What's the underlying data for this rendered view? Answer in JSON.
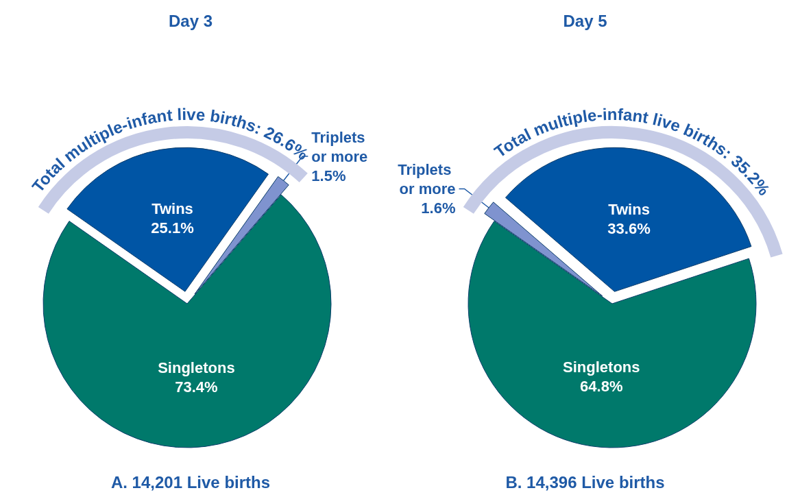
{
  "chart_data": [
    {
      "type": "pie",
      "title": "Day 3",
      "categories": [
        "Twins",
        "Triplets or more",
        "Singletons"
      ],
      "values": [
        25.1,
        1.5,
        73.4
      ],
      "value_labels": [
        "25.1%",
        "1.5%",
        "73.4%"
      ],
      "colors": [
        "#0055a5",
        "#7f93cf",
        "#00796b"
      ],
      "annotations": [
        "Total multiple-infant live births: 26.6%",
        "A. 14,201 Live births"
      ]
    },
    {
      "type": "pie",
      "title": "Day 5",
      "categories": [
        "Triplets or more",
        "Twins",
        "Singletons"
      ],
      "values": [
        1.6,
        33.6,
        64.8
      ],
      "value_labels": [
        "1.6%",
        "33.6%",
        "64.8%"
      ],
      "colors": [
        "#7f93cf",
        "#0055a5",
        "#00796b"
      ],
      "annotations": [
        "Total multiple-infant live births: 35.2%",
        "B. 14,396 Live births"
      ]
    }
  ]
}
